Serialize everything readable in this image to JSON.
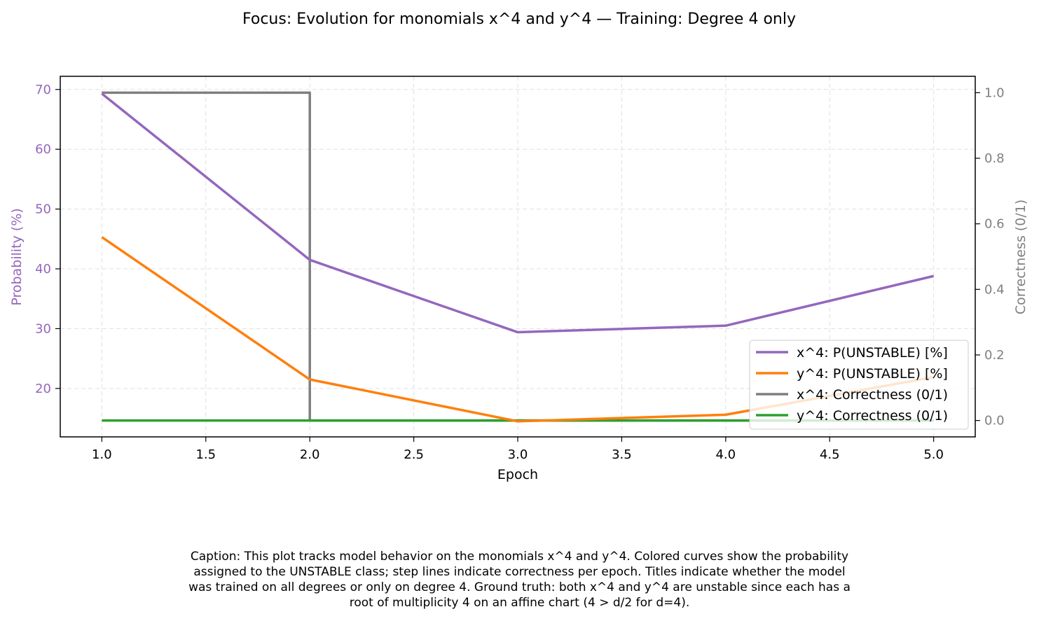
{
  "chart_data": {
    "type": "line",
    "title": "Focus: Evolution for monomials x^4 and y^4 — Training: Degree 4 only",
    "xlabel": "Epoch",
    "ylabel_left": "Probability (%)",
    "ylabel_right": "Correctness (0/1)",
    "x": [
      1.0,
      2.0,
      3.0,
      4.0,
      5.0
    ],
    "xlim": [
      0.8,
      5.2
    ],
    "ylim_left": [
      11.9,
      72.2
    ],
    "ylim_right": [
      -0.05,
      1.05
    ],
    "x_ticks": [
      1.0,
      1.5,
      2.0,
      2.5,
      3.0,
      3.5,
      4.0,
      4.5,
      5.0
    ],
    "x_tick_labels": [
      "1.0",
      "1.5",
      "2.0",
      "2.5",
      "3.0",
      "3.5",
      "4.0",
      "4.5",
      "5.0"
    ],
    "y_left_ticks": [
      20,
      30,
      40,
      50,
      60,
      70
    ],
    "y_left_tick_labels": [
      "20",
      "30",
      "40",
      "50",
      "60",
      "70"
    ],
    "y_right_ticks": [
      0.0,
      0.2,
      0.4,
      0.6,
      0.8,
      1.0
    ],
    "y_right_tick_labels": [
      "0.0",
      "0.2",
      "0.4",
      "0.6",
      "0.8",
      "1.0"
    ],
    "grid": true,
    "legend_position": "lower-right",
    "series": [
      {
        "name": "x^4: P(UNSTABLE) [%]",
        "axis": "left",
        "style": "line",
        "color": "#9467bd",
        "values": [
          69.3,
          41.5,
          29.4,
          30.5,
          38.8
        ]
      },
      {
        "name": "y^4: P(UNSTABLE) [%]",
        "axis": "left",
        "style": "line",
        "color": "#ff7f0e",
        "values": [
          45.3,
          21.5,
          14.5,
          15.6,
          21.9
        ]
      },
      {
        "name": "x^4: Correctness (0/1)",
        "axis": "right",
        "style": "step",
        "color": "#7f7f7f",
        "values": [
          1,
          0,
          0,
          0,
          0
        ]
      },
      {
        "name": "y^4: Correctness (0/1)",
        "axis": "right",
        "style": "step",
        "color": "#2ca02c",
        "values": [
          0,
          0,
          0,
          0,
          0
        ]
      }
    ],
    "left_axis_color": "#9467bd",
    "right_axis_color": "#7f7f7f"
  },
  "caption": [
    "Caption: This plot tracks model behavior on the monomials x^4 and y^4. Colored curves show the probability",
    "assigned to the UNSTABLE class; step lines indicate correctness per epoch. Titles indicate whether the model",
    "was trained on all degrees or only on degree 4. Ground truth: both x^4 and y^4 are unstable since each has a",
    "root of multiplicity 4 on an affine chart (4 > d/2 for d=4)."
  ]
}
